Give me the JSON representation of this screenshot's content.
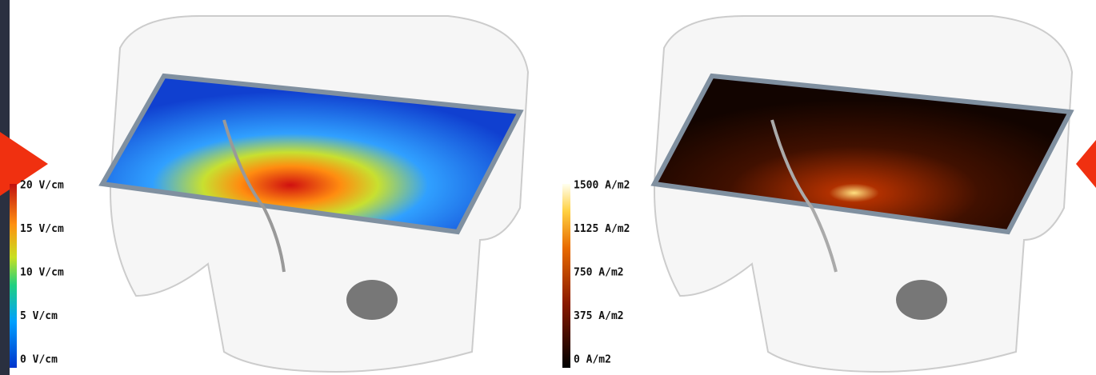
{
  "left_panel": {
    "colorbar": {
      "labels": [
        "20 V/cm",
        "15 V/cm",
        "10 V/cm",
        "5 V/cm",
        "0 V/cm"
      ]
    }
  },
  "right_panel": {
    "colorbar": {
      "labels": [
        "1500 A/m2",
        "1125 A/m2",
        "750 A/m2",
        "375 A/m2",
        "0 A/m2"
      ]
    }
  }
}
